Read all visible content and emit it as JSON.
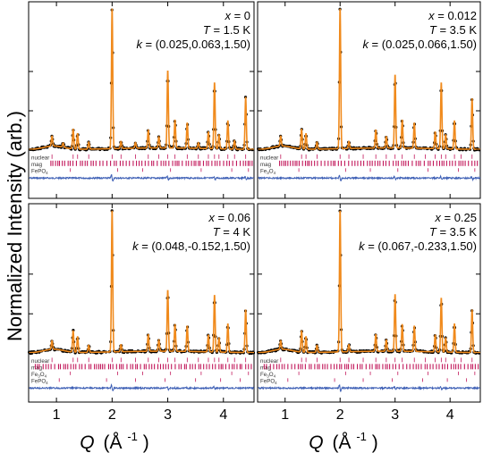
{
  "figure": {
    "ylabel": "Normalized Intensity (arb.)",
    "xlabel_main": "Q",
    "xlabel_unit": "(Å",
    "xlabel_exp": "-1",
    "xlabel_close": ")"
  },
  "chart_data": [
    {
      "type": "line",
      "panel": "top-left",
      "annotation": {
        "x": "x = 0",
        "T": "T = 1.5 K",
        "k": "k = (0.025,0.063,1.50)"
      },
      "xlim": [
        0.5,
        4.55
      ],
      "xticks": [
        1,
        2,
        3,
        4
      ],
      "tick_labels_shown": false,
      "phase_labels": [
        "nuclear",
        "mag",
        "FePO4"
      ],
      "phase_label_parts": [
        [
          "nuclear",
          ""
        ],
        [
          "mag",
          ""
        ],
        [
          "FePO",
          "4"
        ]
      ],
      "peaks": [
        {
          "q": 0.92,
          "h": 0.07
        },
        {
          "q": 1.12,
          "h": 0.03
        },
        {
          "q": 1.3,
          "h": 0.14
        },
        {
          "q": 1.38,
          "h": 0.11
        },
        {
          "q": 1.58,
          "h": 0.05
        },
        {
          "q": 2.0,
          "h": 1.0
        },
        {
          "q": 2.16,
          "h": 0.05
        },
        {
          "q": 2.42,
          "h": 0.04
        },
        {
          "q": 2.65,
          "h": 0.13
        },
        {
          "q": 2.84,
          "h": 0.08
        },
        {
          "q": 3.0,
          "h": 0.55
        },
        {
          "q": 3.13,
          "h": 0.2
        },
        {
          "q": 3.35,
          "h": 0.18
        },
        {
          "q": 3.55,
          "h": 0.04
        },
        {
          "q": 3.73,
          "h": 0.12
        },
        {
          "q": 3.84,
          "h": 0.47
        },
        {
          "q": 3.92,
          "h": 0.1
        },
        {
          "q": 4.08,
          "h": 0.2
        },
        {
          "q": 4.2,
          "h": 0.06
        },
        {
          "q": 4.4,
          "h": 0.37
        }
      ]
    },
    {
      "type": "line",
      "panel": "top-right",
      "annotation": {
        "x": "x = 0.012",
        "T": "T = 3.5 K",
        "k": "k = (0.025,0.066,1.50)"
      },
      "xlim": [
        0.5,
        4.55
      ],
      "xticks": [
        1,
        2,
        3,
        4
      ],
      "tick_labels_shown": false,
      "phase_labels": [
        "nuclear",
        "mag",
        "Fe3O4"
      ],
      "phase_label_parts": [
        [
          "nuclear",
          ""
        ],
        [
          "mag",
          ""
        ],
        [
          "Fe",
          "3"
        ],
        [
          "O",
          "4"
        ]
      ],
      "peaks": [
        {
          "q": 0.92,
          "h": 0.07
        },
        {
          "q": 1.3,
          "h": 0.14
        },
        {
          "q": 1.38,
          "h": 0.11
        },
        {
          "q": 1.58,
          "h": 0.05
        },
        {
          "q": 2.0,
          "h": 1.0
        },
        {
          "q": 2.16,
          "h": 0.05
        },
        {
          "q": 2.65,
          "h": 0.13
        },
        {
          "q": 2.84,
          "h": 0.08
        },
        {
          "q": 3.0,
          "h": 0.52
        },
        {
          "q": 3.13,
          "h": 0.2
        },
        {
          "q": 3.35,
          "h": 0.18
        },
        {
          "q": 3.73,
          "h": 0.12
        },
        {
          "q": 3.84,
          "h": 0.47
        },
        {
          "q": 3.92,
          "h": 0.1
        },
        {
          "q": 4.08,
          "h": 0.2
        },
        {
          "q": 4.4,
          "h": 0.36
        }
      ]
    },
    {
      "type": "line",
      "panel": "bottom-left",
      "annotation": {
        "x": "x = 0.06",
        "T": "T = 4 K",
        "k": "k = (0.048,-0.152,1.50)"
      },
      "xlim": [
        0.5,
        4.55
      ],
      "xticks": [
        1,
        2,
        3,
        4
      ],
      "xtick_labels": [
        "1",
        "2",
        "3",
        "4"
      ],
      "tick_labels_shown": true,
      "phase_labels": [
        "nuclear",
        "mag",
        "Fe3O4",
        "FePO4"
      ],
      "phase_label_parts": [
        [
          "nuclear",
          ""
        ],
        [
          "mag",
          ""
        ],
        [
          "Fe",
          "3"
        ],
        [
          "O",
          "4"
        ],
        [
          "FePO",
          "4"
        ]
      ],
      "peaks": [
        {
          "q": 0.92,
          "h": 0.06
        },
        {
          "q": 1.3,
          "h": 0.15
        },
        {
          "q": 1.38,
          "h": 0.11
        },
        {
          "q": 1.58,
          "h": 0.05
        },
        {
          "q": 2.0,
          "h": 1.0
        },
        {
          "q": 2.16,
          "h": 0.05
        },
        {
          "q": 2.65,
          "h": 0.12
        },
        {
          "q": 2.84,
          "h": 0.08
        },
        {
          "q": 3.0,
          "h": 0.43
        },
        {
          "q": 3.13,
          "h": 0.19
        },
        {
          "q": 3.35,
          "h": 0.18
        },
        {
          "q": 3.73,
          "h": 0.12
        },
        {
          "q": 3.84,
          "h": 0.4
        },
        {
          "q": 3.92,
          "h": 0.1
        },
        {
          "q": 4.08,
          "h": 0.2
        },
        {
          "q": 4.4,
          "h": 0.3
        }
      ]
    },
    {
      "type": "line",
      "panel": "bottom-right",
      "annotation": {
        "x": "x = 0.25",
        "T": "T = 3.5 K",
        "k": "k = (0.067,-0.233,1.50)"
      },
      "xlim": [
        0.5,
        4.55
      ],
      "xticks": [
        1,
        2,
        3,
        4
      ],
      "xtick_labels": [
        "1",
        "2",
        "3",
        "4"
      ],
      "tick_labels_shown": true,
      "phase_labels": [
        "nuclear",
        "mag",
        "Fe3O4",
        "FePO4"
      ],
      "phase_label_parts": [
        [
          "nuclear",
          ""
        ],
        [
          "mag",
          ""
        ],
        [
          "Fe",
          "3"
        ],
        [
          "O",
          "4"
        ],
        [
          "FePO",
          "4"
        ]
      ],
      "peaks": [
        {
          "q": 0.92,
          "h": 0.06
        },
        {
          "q": 1.3,
          "h": 0.15
        },
        {
          "q": 1.38,
          "h": 0.11
        },
        {
          "q": 1.58,
          "h": 0.05
        },
        {
          "q": 2.0,
          "h": 1.0
        },
        {
          "q": 2.16,
          "h": 0.05
        },
        {
          "q": 2.65,
          "h": 0.12
        },
        {
          "q": 2.84,
          "h": 0.08
        },
        {
          "q": 3.0,
          "h": 0.4
        },
        {
          "q": 3.13,
          "h": 0.19
        },
        {
          "q": 3.35,
          "h": 0.18
        },
        {
          "q": 3.73,
          "h": 0.12
        },
        {
          "q": 3.84,
          "h": 0.38
        },
        {
          "q": 3.92,
          "h": 0.1
        },
        {
          "q": 4.08,
          "h": 0.2
        },
        {
          "q": 4.4,
          "h": 0.3
        }
      ]
    }
  ],
  "colors": {
    "data_points": "#000000",
    "fit_line": "#f08a1c",
    "difference": "#3d5fb5",
    "mag_ticks": "#c2185b",
    "other_ticks": "#c2185b",
    "axes": "#000000"
  }
}
